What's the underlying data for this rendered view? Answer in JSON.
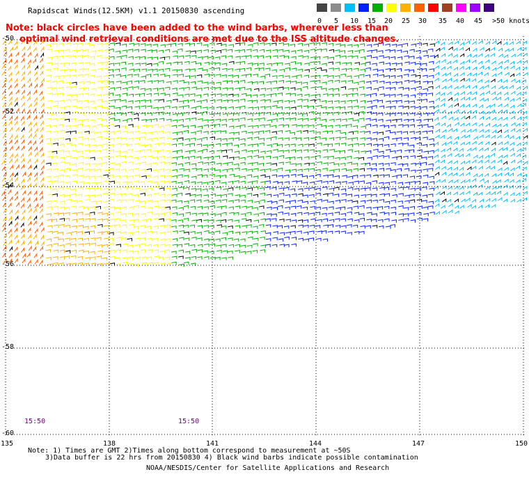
{
  "title": "Rapidscat Winds(12.5KM) v1.1 20150830 ascending",
  "note": {
    "line1": "Note: black circles have been added to the wind barbs, wherever less than",
    "line2": "optimal wind retrieval conditions are met due to the ISS altitude changes."
  },
  "legend": {
    "labels": [
      "0",
      "5",
      "10",
      "15",
      "20",
      "25",
      "30",
      "35",
      "40",
      "45",
      ">50 knots"
    ],
    "colors": [
      "#444444",
      "#8c8c8c",
      "#00bfff",
      "#0020ff",
      "#00b000",
      "#ffff00",
      "#ffb000",
      "#ff6000",
      "#ff0000",
      "#a04020",
      "#ff00ff",
      "#a000ff",
      "#400080"
    ]
  },
  "map": {
    "lon_labels": [
      "135",
      "138",
      "141",
      "144",
      "147",
      "150"
    ],
    "lat_labels": [
      "-50",
      "-52",
      "-54",
      "-56",
      "-58",
      "-60"
    ],
    "time_labels": [
      "15:50",
      "15:50"
    ]
  },
  "footer": {
    "line1": "Note: 1) Times are GMT 2)Times along bottom correspond to measurement at ~50S",
    "line2": "3)Data buffer is 22 hrs from 20150830 4) Black wind barbs indicate possible contamination",
    "line3": "NOAA/NESDIS/Center for Satellite Applications and Research"
  }
}
